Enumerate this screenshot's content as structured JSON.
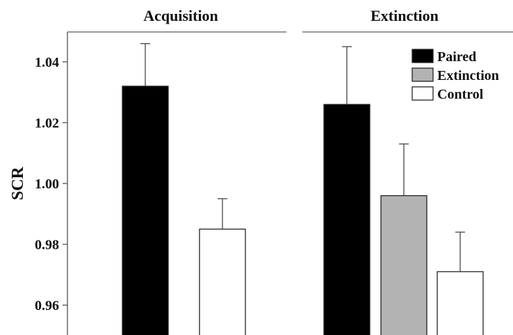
{
  "chart_data": {
    "type": "bar",
    "ylabel": "SCR",
    "ylim": [
      0.95,
      1.05
    ],
    "yticks": [
      "0.96",
      "0.98",
      "1.00",
      "1.02",
      "1.04"
    ],
    "legend_position": "top-right",
    "legend": [
      {
        "name": "Paired",
        "color": "#000000"
      },
      {
        "name": "Extinction",
        "color": "#b3b3b3"
      },
      {
        "name": "Control",
        "color": "#ffffff"
      }
    ],
    "panels": [
      {
        "title": "Acquisition",
        "bars": [
          {
            "series": "Paired",
            "value": 1.032,
            "error": 0.014
          },
          {
            "series": "Control",
            "value": 0.985,
            "error": 0.01
          }
        ]
      },
      {
        "title": "Extinction",
        "bars": [
          {
            "series": "Paired",
            "value": 1.026,
            "error": 0.019
          },
          {
            "series": "Extinction",
            "value": 0.996,
            "error": 0.017
          },
          {
            "series": "Control",
            "value": 0.971,
            "error": 0.013
          }
        ]
      }
    ]
  }
}
